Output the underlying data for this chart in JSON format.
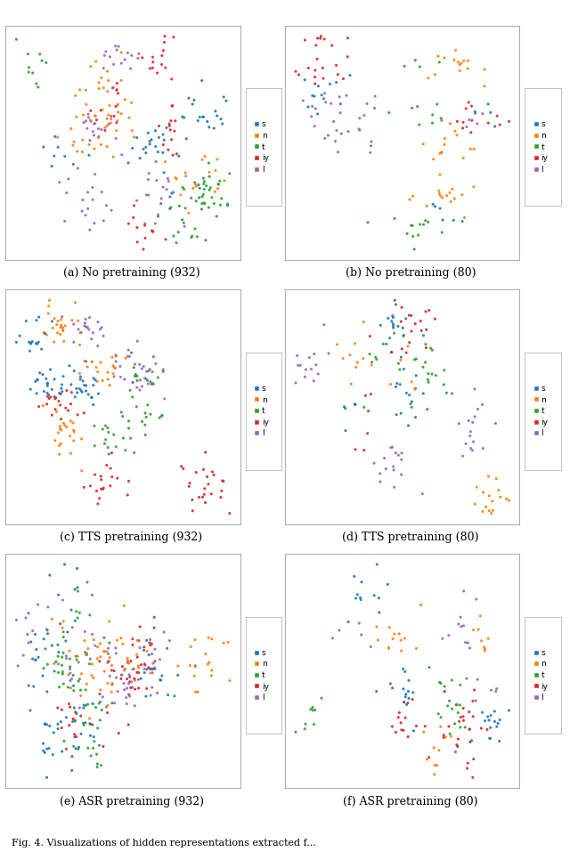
{
  "subtitles": [
    "(a) No pretraining (932)",
    "(b) No pretraining (80)",
    "(c) TTS pretraining (932)",
    "(d) TTS pretraining (80)",
    "(e) ASR pretraining (932)",
    "(f) ASR pretraining (80)"
  ],
  "caption": "Fig. 4. Visualizations of hidden representations extracted f...",
  "legend_labels": [
    "s",
    "n",
    "t",
    "iy",
    "l"
  ],
  "colors": {
    "s": "#1f77b4",
    "n": "#ff7f0e",
    "t": "#2ca02c",
    "iy": "#d62728",
    "l": "#9467bd"
  },
  "background": "#ffffff",
  "dot_size": 5,
  "subtitle_fontsize": 9,
  "caption_fontsize": 8
}
